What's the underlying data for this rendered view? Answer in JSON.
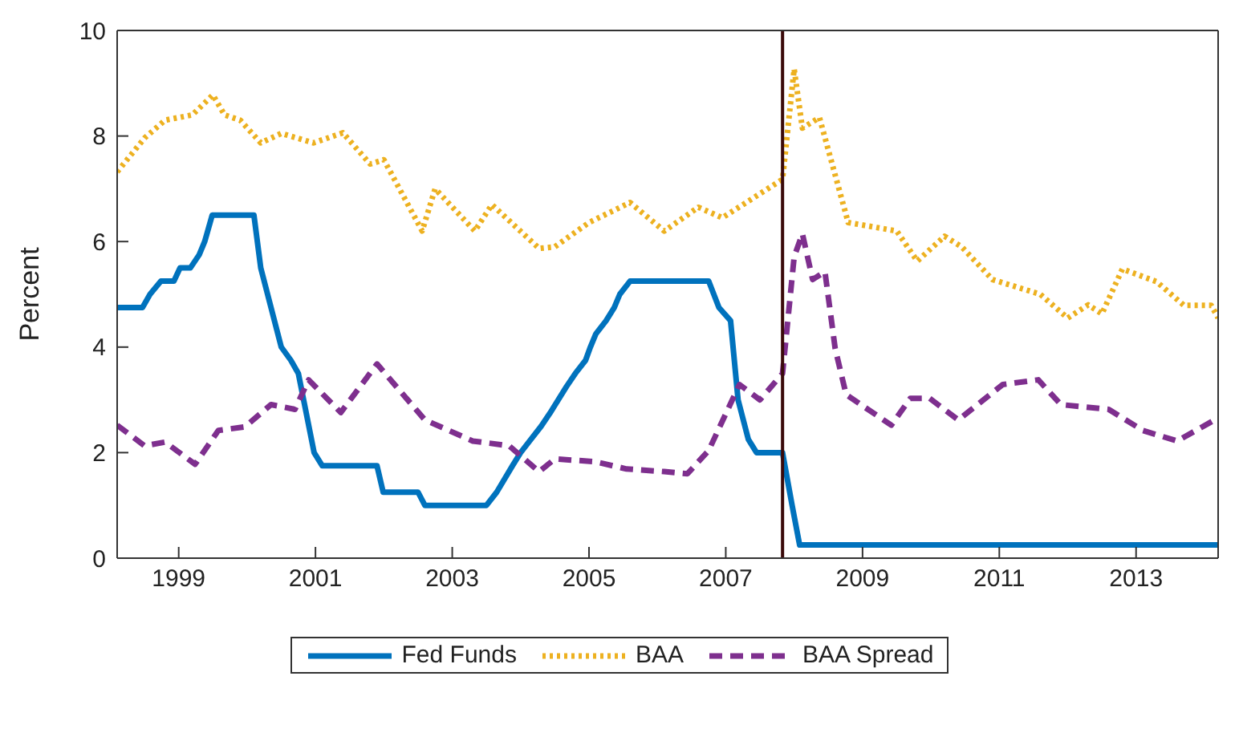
{
  "chart_data": {
    "type": "line",
    "ylabel": "Percent",
    "xlim": [
      1998.1,
      2014.2
    ],
    "xticks": [
      1999,
      2001,
      2003,
      2005,
      2007,
      2009,
      2011,
      2013
    ],
    "ylim": [
      0,
      10
    ],
    "yticks": [
      0,
      2,
      4,
      6,
      8,
      10
    ],
    "legend": "bottom",
    "ref_lines": [
      {
        "axis": "x",
        "value": 2007.83,
        "color": "#3a0a0a"
      }
    ],
    "series": [
      {
        "name": "Fed Funds",
        "color": "#0072bd",
        "line_style": "solid",
        "x": [
          1998.1,
          1998.47,
          1998.58,
          1998.74,
          1998.93,
          1999.02,
          1999.17,
          1999.3,
          1999.38,
          1999.49,
          2000.1,
          2000.2,
          2000.5,
          2000.64,
          2000.75,
          2000.98,
          2001.1,
          2001.9,
          2001.99,
          2002.5,
          2002.6,
          2003.5,
          2003.65,
          2003.88,
          2004.0,
          2004.15,
          2004.3,
          2004.43,
          2004.55,
          2004.67,
          2004.8,
          2004.95,
          2005.02,
          2005.1,
          2005.25,
          2005.37,
          2005.45,
          2005.6,
          2006.75,
          2006.9,
          2007.07,
          2007.18,
          2007.33,
          2007.45,
          2007.83,
          2007.97,
          2008.08,
          2014.2
        ],
        "values": [
          4.75,
          4.75,
          5.0,
          5.25,
          5.25,
          5.5,
          5.5,
          5.75,
          6.0,
          6.5,
          6.5,
          5.5,
          4.0,
          3.75,
          3.5,
          2.0,
          1.75,
          1.75,
          1.25,
          1.25,
          1.0,
          1.0,
          1.25,
          1.75,
          2.0,
          2.25,
          2.5,
          2.75,
          3.0,
          3.25,
          3.5,
          3.75,
          4.0,
          4.25,
          4.5,
          4.75,
          5.0,
          5.25,
          5.25,
          4.75,
          4.5,
          3.0,
          2.25,
          2.0,
          2.0,
          1.0,
          0.25,
          0.25
        ]
      },
      {
        "name": "BAA",
        "color": "#edb120",
        "line_style": "dotted",
        "x": [
          1998.1,
          1998.5,
          1998.8,
          1999.2,
          1999.5,
          1999.67,
          1999.9,
          2000.2,
          2000.5,
          2000.97,
          2001.4,
          2001.8,
          2002.0,
          2002.56,
          2002.75,
          2003.33,
          2003.58,
          2004.27,
          2004.5,
          2005.0,
          2005.6,
          2006.1,
          2006.6,
          2006.95,
          2007.83,
          2008.0,
          2008.12,
          2008.37,
          2008.79,
          2009.5,
          2009.8,
          2010.2,
          2010.45,
          2010.9,
          2011.6,
          2012.0,
          2012.3,
          2012.5,
          2012.8,
          2013.3,
          2013.7,
          2014.1,
          2014.2
        ],
        "values": [
          7.32,
          7.96,
          8.3,
          8.4,
          8.78,
          8.4,
          8.3,
          7.87,
          8.05,
          7.87,
          8.06,
          7.47,
          7.55,
          6.2,
          7.0,
          6.2,
          6.7,
          5.87,
          5.9,
          6.36,
          6.74,
          6.2,
          6.65,
          6.45,
          7.18,
          9.27,
          8.15,
          8.35,
          6.36,
          6.2,
          5.63,
          6.1,
          5.9,
          5.28,
          5.0,
          4.55,
          4.8,
          4.63,
          5.48,
          5.24,
          4.79,
          4.79,
          4.55
        ]
      },
      {
        "name": "BAA Spread",
        "color": "#7e2f8e",
        "line_style": "dashed",
        "x": [
          1998.1,
          1998.5,
          1998.8,
          1999.24,
          1999.58,
          1999.97,
          2000.35,
          2000.7,
          2000.9,
          2001.37,
          2001.9,
          2002.6,
          2003.3,
          2003.83,
          2004.27,
          2004.5,
          2005.08,
          2005.55,
          2006.1,
          2006.44,
          2006.75,
          2007.2,
          2007.5,
          2007.83,
          2008.0,
          2008.12,
          2008.27,
          2008.45,
          2008.6,
          2008.76,
          2009.42,
          2009.7,
          2009.98,
          2010.4,
          2011.05,
          2011.57,
          2011.9,
          2012.6,
          2013.1,
          2013.6,
          2014.15
        ],
        "values": [
          2.52,
          2.13,
          2.2,
          1.78,
          2.42,
          2.49,
          2.91,
          2.82,
          3.38,
          2.76,
          3.68,
          2.62,
          2.22,
          2.13,
          1.64,
          1.88,
          1.83,
          1.69,
          1.64,
          1.6,
          2.04,
          3.29,
          3.0,
          3.5,
          5.71,
          6.15,
          5.28,
          5.43,
          3.97,
          3.1,
          2.52,
          3.03,
          3.03,
          2.62,
          3.29,
          3.38,
          2.91,
          2.82,
          2.42,
          2.22,
          2.62
        ]
      }
    ]
  }
}
